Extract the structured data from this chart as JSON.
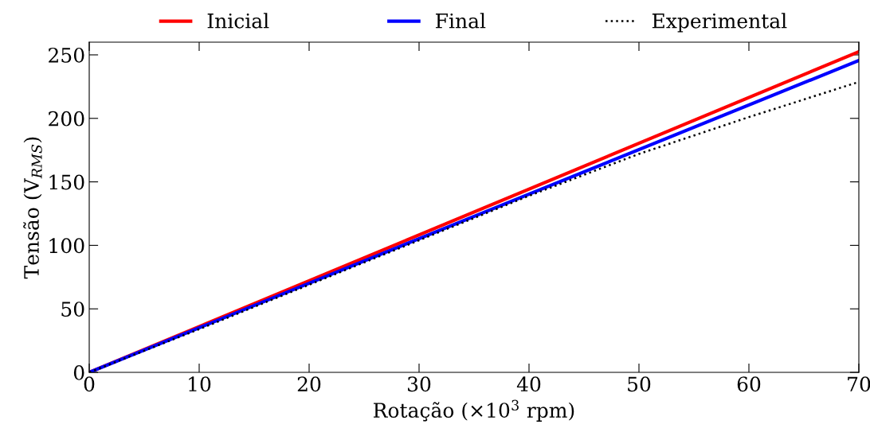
{
  "chart_data": {
    "type": "line",
    "xlabel": "Rotação (×10$^{3}$ rpm)",
    "ylabel": "Tensão (V$_{RMS}$)",
    "xlim": [
      0,
      70
    ],
    "xticks": [
      0,
      10,
      20,
      30,
      40,
      50,
      60,
      70
    ],
    "ylim": [
      0,
      260
    ],
    "yticks": [
      0,
      50,
      100,
      150,
      200,
      250
    ],
    "grid": false,
    "legend": "top",
    "series": [
      {
        "name": "Inicial",
        "color": "#ff0000",
        "line_style": "solid",
        "x": [
          0,
          70
        ],
        "values": [
          0,
          252.5
        ]
      },
      {
        "name": "Final",
        "color": "#0000ff",
        "line_style": "solid",
        "x": [
          0,
          70
        ],
        "values": [
          0,
          245.6
        ]
      },
      {
        "name": "Experimental",
        "color": "#000000",
        "line_style": "dotted",
        "x": [
          0,
          10,
          20,
          30,
          40,
          50,
          60,
          70
        ],
        "values": [
          0,
          34,
          69,
          104,
          139,
          172,
          201,
          228.7
        ]
      }
    ]
  }
}
